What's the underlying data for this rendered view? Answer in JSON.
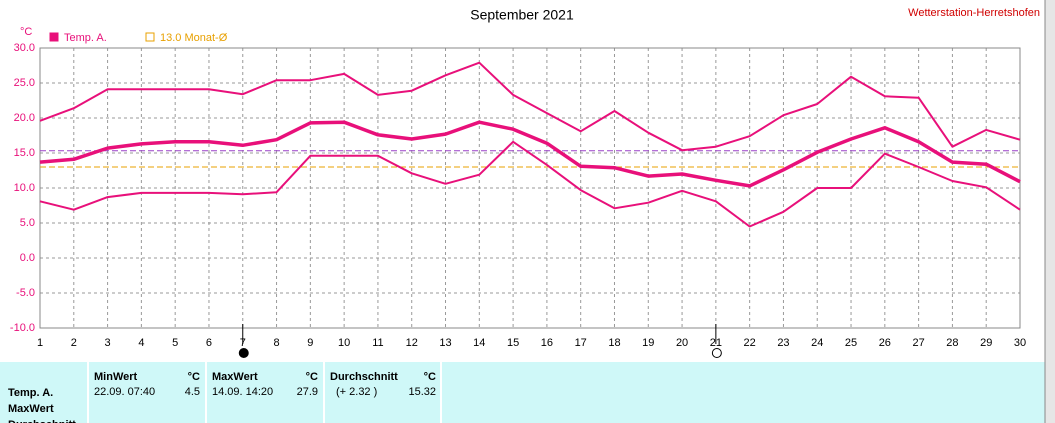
{
  "chart_data": {
    "type": "line",
    "title": "September 2021",
    "station": "Wetterstation-Herretshofen",
    "y_unit": "°C",
    "legend": [
      {
        "label": "Temp. A.",
        "color": "#e8107a",
        "style": "filled"
      },
      {
        "label": "13.0 Monat-Ø",
        "color": "#e8a000",
        "style": "outline"
      }
    ],
    "x": [
      1,
      2,
      3,
      4,
      5,
      6,
      7,
      8,
      9,
      10,
      11,
      12,
      13,
      14,
      15,
      16,
      17,
      18,
      19,
      20,
      21,
      22,
      23,
      24,
      25,
      26,
      27,
      28,
      29,
      30
    ],
    "xlim": [
      1,
      30
    ],
    "xticks": [
      1,
      2,
      3,
      4,
      5,
      6,
      7,
      8,
      9,
      10,
      11,
      12,
      13,
      14,
      15,
      16,
      17,
      18,
      19,
      20,
      21,
      22,
      23,
      24,
      25,
      26,
      27,
      28,
      29,
      30
    ],
    "ylim": [
      -10,
      30
    ],
    "yticks": [
      {
        "value": -10,
        "label": "-10.0"
      },
      {
        "value": -5,
        "label": "-5.0"
      },
      {
        "value": 0,
        "label": "0.0"
      },
      {
        "value": 5,
        "label": "5.0"
      },
      {
        "value": 10,
        "label": "10.0"
      },
      {
        "value": 15,
        "label": "15.0"
      },
      {
        "value": 20,
        "label": "20.0"
      },
      {
        "value": 25,
        "label": "25.0"
      },
      {
        "value": 30,
        "label": "30.0"
      }
    ],
    "grid": true,
    "reference_lines": [
      {
        "value": 15.32,
        "color": "#9a40c8"
      },
      {
        "value": 13,
        "color": "#e8a000"
      }
    ],
    "markers": [
      {
        "x": 7,
        "fill": "#000000"
      },
      {
        "x": 21,
        "fill": "#ffffff"
      }
    ],
    "series": [
      {
        "color": "#e8107a",
        "width": 2,
        "values": [
          19.6,
          21.4,
          24.1,
          24.1,
          24.1,
          24.1,
          23.4,
          25.4,
          25.4,
          26.3,
          23.3,
          23.9,
          26.1,
          27.9,
          23.3,
          20.7,
          18.1,
          21.0,
          17.9,
          15.4,
          15.9,
          17.4,
          20.4,
          22.0,
          25.9,
          23.1,
          22.9,
          15.9,
          18.3,
          16.9
        ]
      },
      {
        "color": "#e8107a",
        "width": 3.5,
        "values": [
          13.7,
          14.1,
          15.7,
          16.3,
          16.6,
          16.6,
          16.1,
          16.9,
          19.3,
          19.4,
          17.6,
          17.0,
          17.7,
          19.4,
          18.4,
          16.4,
          13.1,
          12.9,
          11.7,
          12.0,
          11.1,
          10.3,
          12.6,
          15.1,
          17.0,
          18.6,
          16.6,
          13.7,
          13.4,
          10.9
        ]
      },
      {
        "color": "#e8107a",
        "width": 2,
        "values": [
          8.1,
          6.9,
          8.7,
          9.3,
          9.3,
          9.3,
          9.1,
          9.4,
          14.6,
          14.6,
          14.6,
          12.1,
          10.6,
          11.9,
          16.6,
          13.3,
          9.7,
          7.1,
          7.9,
          9.6,
          8.1,
          4.5,
          6.6,
          10.0,
          10.0,
          14.9,
          13.0,
          11.0,
          10.1,
          6.9
        ]
      }
    ]
  },
  "table": {
    "row_labels": [
      "Temp. A.",
      "MaxWert",
      "Durchschnitt"
    ],
    "columns": [
      {
        "header": "MinWert",
        "unit": "°C",
        "when": "22.09.  07:40",
        "value": "4.5"
      },
      {
        "header": "MaxWert",
        "unit": "°C",
        "when": "14.09.  14:20",
        "value": "27.9"
      },
      {
        "header": "Durchschnitt",
        "unit": "°C",
        "when": "(+ 2.32 )",
        "value": "15.32"
      }
    ]
  }
}
